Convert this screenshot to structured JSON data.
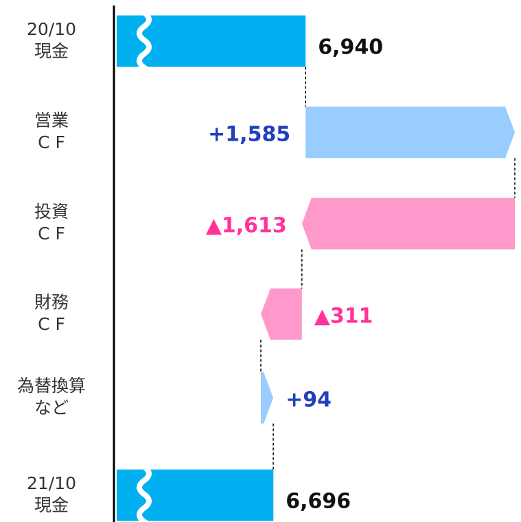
{
  "chart_data": {
    "type": "waterfall",
    "categories": [
      [
        "20/10",
        "現金"
      ],
      [
        "営業",
        "C F"
      ],
      [
        "投資",
        "C F"
      ],
      [
        "財務",
        "C F"
      ],
      [
        "為替換算",
        "など"
      ],
      [
        "21/10",
        "現金"
      ]
    ],
    "values": [
      6940,
      1585,
      -1613,
      -311,
      94,
      6696
    ],
    "value_labels": [
      "6,940",
      "+1,585",
      "▲1,613",
      "▲311",
      "+94",
      "6,696"
    ],
    "totals": [
      true,
      false,
      false,
      false,
      false,
      true
    ],
    "colors": {
      "total": "#00b0f0",
      "increase": "#99ccff",
      "decrease": "#ff99cc"
    },
    "label_colors": {
      "total": "#111111",
      "increase": "#1f3fbf",
      "decrease": "#ff3399"
    }
  }
}
